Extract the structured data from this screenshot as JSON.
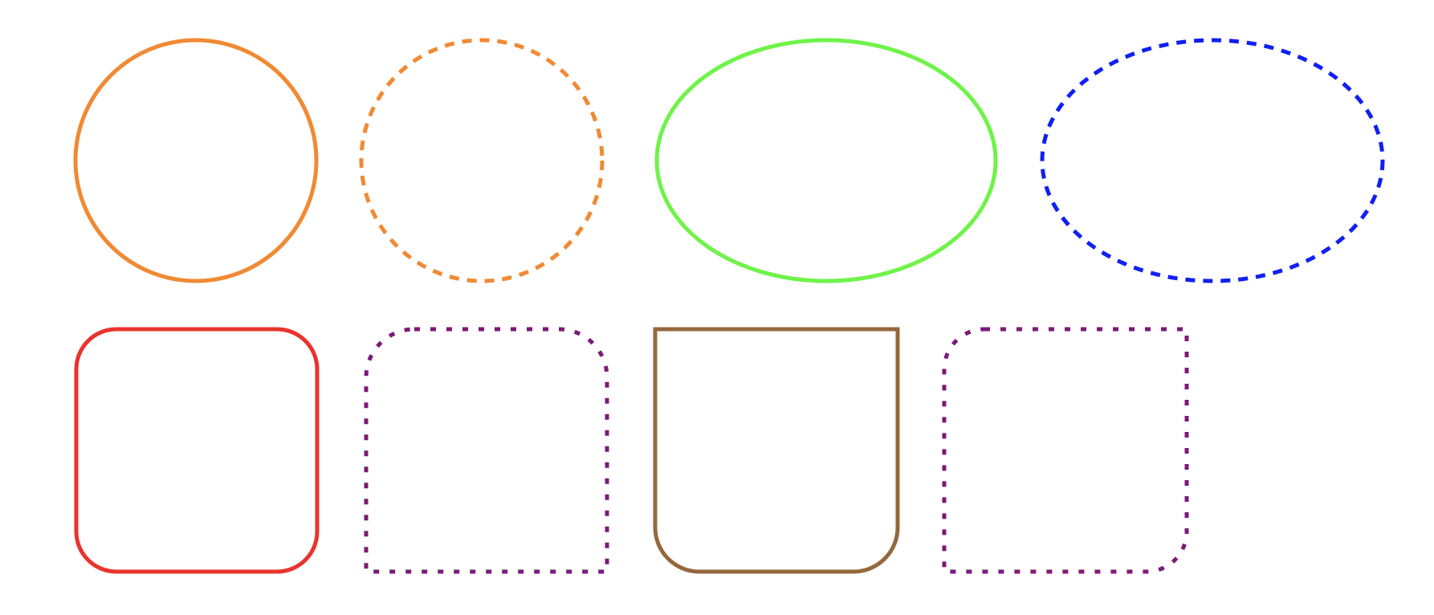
{
  "shapes": [
    {
      "id": "orange-solid-circle",
      "kind": "circle",
      "stroke_style": "solid",
      "color": "#f08a34",
      "corners": "all"
    },
    {
      "id": "orange-dashed-circle",
      "kind": "circle",
      "stroke_style": "dashed",
      "color": "#f08a34",
      "corners": "all"
    },
    {
      "id": "green-solid-ellipse",
      "kind": "ellipse",
      "stroke_style": "solid",
      "color": "#6ff34a",
      "corners": "all"
    },
    {
      "id": "blue-dashed-ellipse",
      "kind": "ellipse",
      "stroke_style": "dashed",
      "color": "#1020f0",
      "corners": "all"
    },
    {
      "id": "red-solid-rounded-rect",
      "kind": "rounded-rect",
      "stroke_style": "solid",
      "color": "#e8342c",
      "corners": "all"
    },
    {
      "id": "purple-dotted-top-rounded-rect",
      "kind": "rounded-rect",
      "stroke_style": "dotted",
      "color": "#7a1a78",
      "corners": "top"
    },
    {
      "id": "brown-solid-bottom-rounded-rect",
      "kind": "rounded-rect",
      "stroke_style": "solid",
      "color": "#95673c",
      "corners": "bottom"
    },
    {
      "id": "purple-dotted-diagonal-rounded-rect",
      "kind": "rounded-rect",
      "stroke_style": "dotted",
      "color": "#7a1a78",
      "corners": "top-left-bottom-right"
    }
  ]
}
